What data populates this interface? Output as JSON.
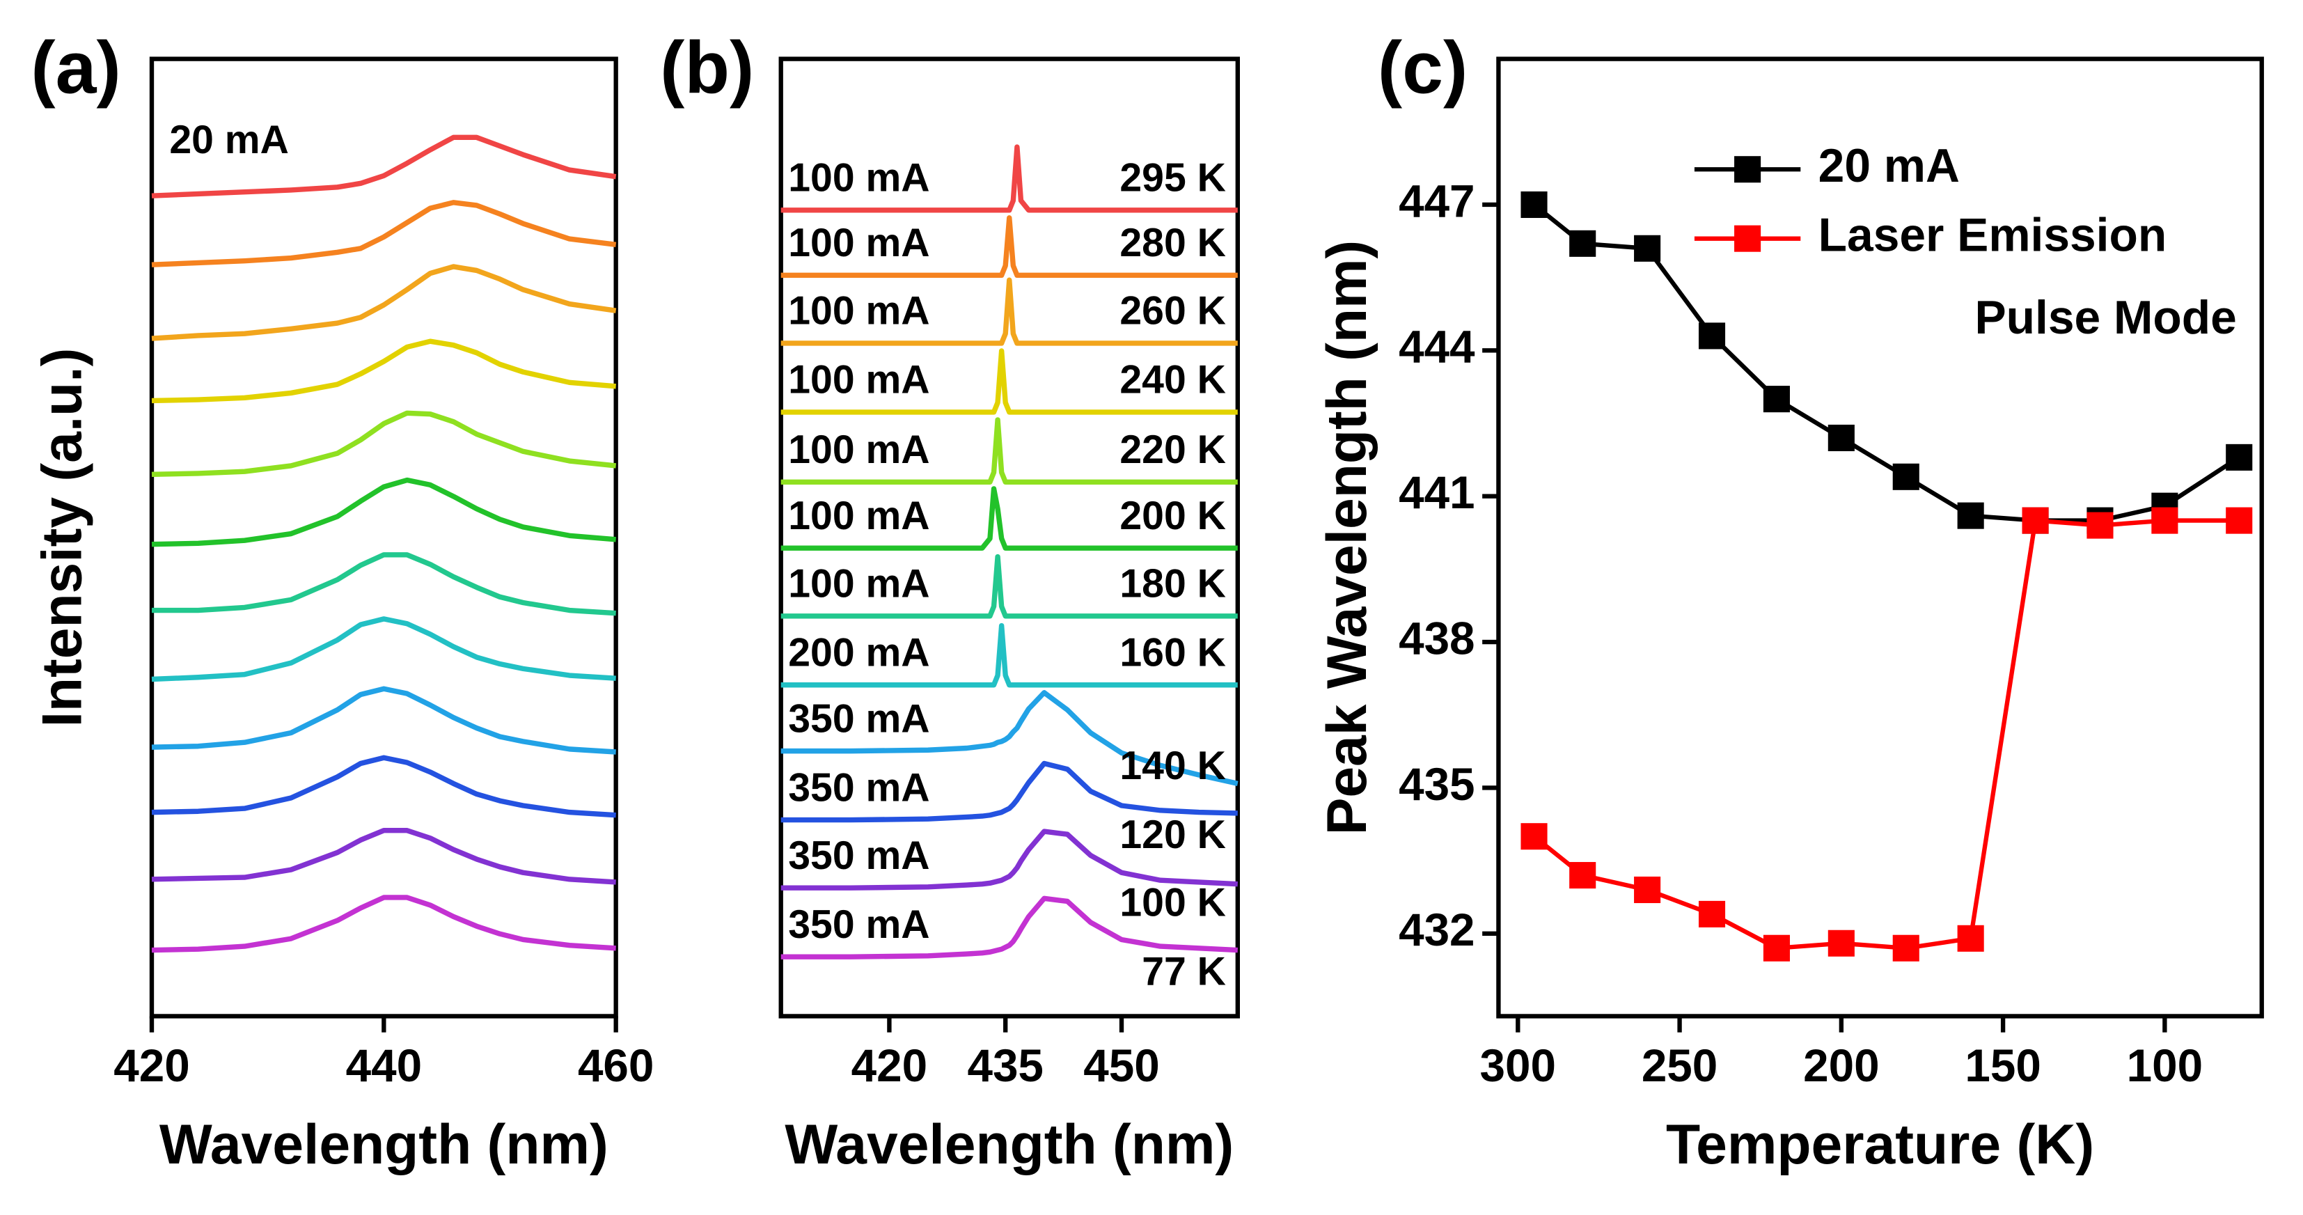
{
  "chart_data": [
    {
      "type": "line",
      "panel_label": "(a)",
      "x_label": "Wavelength (nm)",
      "y_label": "Intensity (a.u.)",
      "annotation": "20 mA",
      "xlim": [
        420,
        460
      ],
      "xticks": [
        420,
        440,
        460
      ],
      "ylim": [
        0,
        10
      ],
      "x": [
        420,
        424,
        428,
        432,
        436,
        438,
        440,
        442,
        444,
        446,
        448,
        450,
        452,
        456,
        460
      ],
      "series": [
        {
          "color": "#f04545",
          "values": [
            8.57,
            8.59,
            8.61,
            8.63,
            8.66,
            8.7,
            8.78,
            8.91,
            9.05,
            9.18,
            9.18,
            9.09,
            9.0,
            8.84,
            8.77
          ]
        },
        {
          "color": "#f5821f",
          "values": [
            7.85,
            7.87,
            7.89,
            7.92,
            7.98,
            8.02,
            8.14,
            8.29,
            8.44,
            8.5,
            8.47,
            8.38,
            8.28,
            8.12,
            8.06
          ]
        },
        {
          "color": "#f2a51c",
          "values": [
            7.08,
            7.11,
            7.13,
            7.18,
            7.24,
            7.3,
            7.43,
            7.59,
            7.76,
            7.83,
            7.79,
            7.7,
            7.59,
            7.44,
            7.37
          ]
        },
        {
          "color": "#e2d200",
          "values": [
            6.43,
            6.44,
            6.46,
            6.51,
            6.6,
            6.71,
            6.84,
            6.99,
            7.05,
            7.01,
            6.93,
            6.81,
            6.73,
            6.62,
            6.58
          ]
        },
        {
          "color": "#8fe020",
          "values": [
            5.66,
            5.67,
            5.69,
            5.75,
            5.88,
            6.02,
            6.19,
            6.3,
            6.29,
            6.21,
            6.08,
            5.99,
            5.9,
            5.8,
            5.75
          ]
        },
        {
          "color": "#22c22a",
          "values": [
            4.93,
            4.94,
            4.97,
            5.04,
            5.22,
            5.38,
            5.53,
            5.6,
            5.55,
            5.43,
            5.3,
            5.19,
            5.11,
            5.02,
            4.98
          ]
        },
        {
          "color": "#22c88e",
          "values": [
            4.24,
            4.24,
            4.27,
            4.35,
            4.56,
            4.71,
            4.82,
            4.82,
            4.72,
            4.59,
            4.48,
            4.38,
            4.32,
            4.24,
            4.21
          ]
        },
        {
          "color": "#22c0c4",
          "values": [
            3.52,
            3.54,
            3.57,
            3.69,
            3.93,
            4.09,
            4.15,
            4.1,
            3.99,
            3.86,
            3.75,
            3.68,
            3.63,
            3.56,
            3.53
          ]
        },
        {
          "color": "#22a2e6",
          "values": [
            2.81,
            2.82,
            2.86,
            2.96,
            3.2,
            3.36,
            3.42,
            3.37,
            3.25,
            3.12,
            3.01,
            2.92,
            2.87,
            2.79,
            2.76
          ]
        },
        {
          "color": "#2452e0",
          "values": [
            2.13,
            2.14,
            2.17,
            2.28,
            2.5,
            2.64,
            2.7,
            2.65,
            2.55,
            2.43,
            2.32,
            2.25,
            2.2,
            2.13,
            2.1
          ]
        },
        {
          "color": "#8232d2",
          "values": [
            1.43,
            1.44,
            1.45,
            1.53,
            1.71,
            1.84,
            1.94,
            1.94,
            1.86,
            1.74,
            1.64,
            1.56,
            1.5,
            1.43,
            1.4
          ]
        },
        {
          "color": "#c332d2",
          "values": [
            0.69,
            0.7,
            0.73,
            0.81,
            1.0,
            1.13,
            1.24,
            1.24,
            1.16,
            1.04,
            0.94,
            0.86,
            0.8,
            0.74,
            0.71
          ]
        }
      ]
    },
    {
      "type": "line",
      "panel_label": "(b)",
      "x_label": "Wavelength (nm)",
      "xlim": [
        406,
        465
      ],
      "xticks": [
        420,
        435,
        450
      ],
      "ylim": [
        0,
        10
      ],
      "x": [
        406,
        415,
        425,
        430,
        432,
        433,
        433.5,
        434,
        434.5,
        435,
        435.5,
        436,
        436.5,
        437,
        438,
        440,
        443,
        446,
        450,
        455,
        460,
        465
      ],
      "series": [
        {
          "name": "295 K",
          "current": "100 mA",
          "color": "#f04545",
          "values": [
            8.42,
            8.42,
            8.42,
            8.42,
            8.42,
            8.42,
            8.42,
            8.42,
            8.42,
            8.42,
            8.42,
            8.52,
            9.08,
            8.52,
            8.42,
            8.42,
            8.42,
            8.42,
            8.42,
            8.42,
            8.42,
            8.42
          ]
        },
        {
          "name": "280 K",
          "current": "100 mA",
          "color": "#f5821f",
          "values": [
            7.74,
            7.74,
            7.74,
            7.74,
            7.74,
            7.74,
            7.74,
            7.74,
            7.74,
            7.84,
            8.34,
            7.84,
            7.74,
            7.74,
            7.74,
            7.74,
            7.74,
            7.74,
            7.74,
            7.74,
            7.74,
            7.74
          ]
        },
        {
          "name": "260 K",
          "current": "100 mA",
          "color": "#f2a51c",
          "values": [
            7.03,
            7.03,
            7.03,
            7.03,
            7.03,
            7.03,
            7.03,
            7.03,
            7.03,
            7.13,
            7.69,
            7.13,
            7.03,
            7.03,
            7.03,
            7.03,
            7.03,
            7.03,
            7.03,
            7.03,
            7.03,
            7.03
          ]
        },
        {
          "name": "240 K",
          "current": "100 mA",
          "color": "#e2d200",
          "values": [
            6.31,
            6.31,
            6.31,
            6.31,
            6.31,
            6.31,
            6.31,
            6.41,
            6.95,
            6.41,
            6.31,
            6.31,
            6.31,
            6.31,
            6.31,
            6.31,
            6.31,
            6.31,
            6.31,
            6.31,
            6.31,
            6.31
          ]
        },
        {
          "name": "220 K",
          "current": "100 mA",
          "color": "#8fe020",
          "values": [
            5.58,
            5.58,
            5.58,
            5.58,
            5.58,
            5.58,
            5.68,
            6.23,
            5.68,
            5.58,
            5.58,
            5.58,
            5.58,
            5.58,
            5.58,
            5.58,
            5.58,
            5.58,
            5.58,
            5.58,
            5.58,
            5.58
          ]
        },
        {
          "name": "200 K",
          "current": "100 mA",
          "color": "#22c22a",
          "values": [
            4.89,
            4.89,
            4.89,
            4.89,
            4.89,
            4.99,
            5.51,
            5.3,
            4.99,
            4.89,
            4.89,
            4.89,
            4.89,
            4.89,
            4.89,
            4.89,
            4.89,
            4.89,
            4.89,
            4.89,
            4.89,
            4.89
          ]
        },
        {
          "name": "180 K",
          "current": "100 mA",
          "color": "#22c88e",
          "values": [
            4.18,
            4.18,
            4.18,
            4.18,
            4.18,
            4.18,
            4.28,
            4.8,
            4.28,
            4.18,
            4.18,
            4.18,
            4.18,
            4.18,
            4.18,
            4.18,
            4.18,
            4.18,
            4.18,
            4.18,
            4.18,
            4.18
          ]
        },
        {
          "name": "160 K",
          "current": "200 mA",
          "color": "#22c0c4",
          "values": [
            3.46,
            3.46,
            3.46,
            3.46,
            3.46,
            3.46,
            3.46,
            3.56,
            4.08,
            3.56,
            3.46,
            3.46,
            3.46,
            3.46,
            3.46,
            3.46,
            3.46,
            3.46,
            3.46,
            3.46,
            3.46,
            3.46
          ]
        },
        {
          "name": "140 K",
          "current": "350 mA",
          "color": "#22a2e6",
          "values": [
            2.77,
            2.77,
            2.78,
            2.8,
            2.82,
            2.83,
            2.84,
            2.86,
            2.87,
            2.89,
            2.92,
            2.97,
            3.01,
            3.08,
            3.21,
            3.38,
            3.2,
            2.96,
            2.75,
            2.62,
            2.52,
            2.43
          ]
        },
        {
          "name": "120 K",
          "current": "350 mA",
          "color": "#2452e0",
          "values": [
            2.05,
            2.05,
            2.06,
            2.08,
            2.09,
            2.1,
            2.11,
            2.12,
            2.13,
            2.15,
            2.17,
            2.21,
            2.26,
            2.32,
            2.44,
            2.64,
            2.58,
            2.35,
            2.2,
            2.15,
            2.13,
            2.12
          ]
        },
        {
          "name": "100 K",
          "current": "350 mA",
          "color": "#8232d2",
          "values": [
            1.34,
            1.34,
            1.35,
            1.37,
            1.38,
            1.39,
            1.4,
            1.41,
            1.42,
            1.44,
            1.46,
            1.5,
            1.55,
            1.62,
            1.74,
            1.93,
            1.9,
            1.68,
            1.5,
            1.42,
            1.4,
            1.38
          ]
        },
        {
          "name": "77 K",
          "current": "350 mA",
          "color": "#c332d2",
          "values": [
            0.62,
            0.62,
            0.63,
            0.65,
            0.66,
            0.67,
            0.68,
            0.69,
            0.7,
            0.72,
            0.74,
            0.78,
            0.84,
            0.91,
            1.04,
            1.23,
            1.2,
            0.98,
            0.8,
            0.73,
            0.71,
            0.69
          ]
        }
      ]
    },
    {
      "type": "line-markers",
      "panel_label": "(c)",
      "x_label": "Temperature (K)",
      "y_label": "Peak Wavelength (nm)",
      "annotation": "Pulse Mode",
      "legend": "top-right",
      "xlim": [
        306,
        70
      ],
      "xticks": [
        300,
        250,
        200,
        150,
        100
      ],
      "ylim": [
        430.3,
        450
      ],
      "yticks": [
        432,
        435,
        438,
        441,
        444,
        447
      ],
      "x": [
        295,
        280,
        260,
        240,
        220,
        200,
        180,
        160,
        140,
        120,
        100,
        77
      ],
      "series": [
        {
          "name": "20 mA",
          "color": "#000000",
          "values": [
            447.0,
            446.2,
            446.1,
            444.3,
            443.0,
            442.2,
            441.4,
            440.6,
            440.5,
            440.5,
            440.8,
            441.8
          ]
        },
        {
          "name": "Laser Emission",
          "color": "#ff0000",
          "values": [
            434.0,
            433.2,
            432.9,
            432.4,
            431.7,
            431.8,
            431.7,
            431.9,
            440.5,
            440.4,
            440.5,
            440.5
          ]
        }
      ]
    }
  ]
}
